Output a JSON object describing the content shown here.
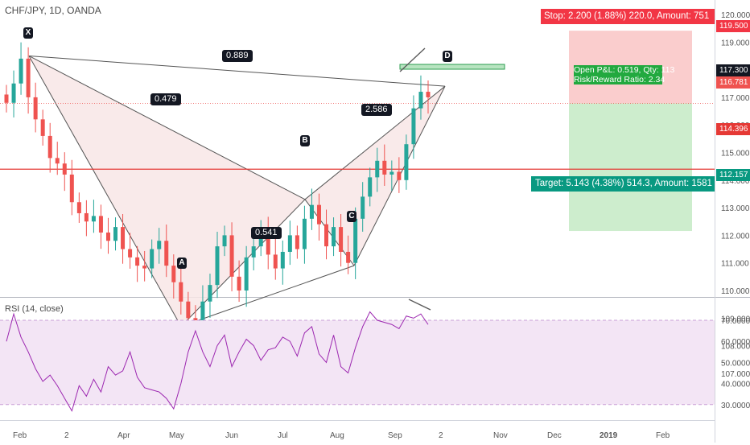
{
  "header": {
    "symbol_title": "CHF/JPY, 1D, OANDA"
  },
  "rsi": {
    "title": "RSI (14, close)",
    "upper_band": 70,
    "lower_band": 30
  },
  "position": {
    "stop_label": "Stop: 2.200 (1.88%) 220.0, Amount: 751",
    "target_label": "Target: 5.143 (4.38%) 514.3, Amount: 1581",
    "pnl_line1": "Open P&L: 0.519, Qty: 113",
    "pnl_line2": "Risk/Reward Ratio: 2.34"
  },
  "price_tags": {
    "stop": "119.500",
    "current": "117.300",
    "entry": "116.781",
    "resistance": "114.396",
    "target": "112.157"
  },
  "colors": {
    "up_candle": "#26a69a",
    "down_candle": "#ef5350",
    "pattern_fill": "#f8e6e6",
    "stop_zone": "#f9c4c4",
    "target_zone": "#c8ebc8",
    "rsi_line": "#9c27b0",
    "rsi_band": "#f3e5f5",
    "resistance_line": "#e53935"
  },
  "pattern": {
    "points": [
      {
        "name": "X",
        "label": "X"
      },
      {
        "name": "A",
        "label": "A"
      },
      {
        "name": "B",
        "label": "B"
      },
      {
        "name": "C",
        "label": "C"
      },
      {
        "name": "D",
        "label": "D"
      }
    ],
    "ratios": [
      "0.889",
      "0.479",
      "0.541",
      "2.586"
    ]
  },
  "chart_data": {
    "type": "candlestick",
    "title": "CHF/JPY, 1D, OANDA",
    "price_axis_ticks": [
      "120.000",
      "119.000",
      "118.000",
      "117.000",
      "116.000",
      "115.000",
      "114.000",
      "113.000",
      "112.000",
      "111.000",
      "110.000",
      "109.000",
      "108.000",
      "107.000"
    ],
    "rsi_axis_ticks": [
      "70.0000",
      "60.0000",
      "50.0000",
      "40.0000",
      "30.0000"
    ],
    "time_axis_labels": [
      "Feb",
      "2",
      "Apr",
      "May",
      "Jun",
      "Jul",
      "Aug",
      "Sep",
      "2",
      "Nov",
      "Dec",
      "2019",
      "Feb"
    ],
    "ylim": [
      106.4,
      120.5
    ],
    "key_levels": {
      "stop": 119.5,
      "current": 117.3,
      "entry": 116.781,
      "resistance": 114.396,
      "target": 112.157
    },
    "pattern_points": {
      "X": 118.5,
      "A": 108.7,
      "B": 113.3,
      "C": 110.9,
      "D": 117.4
    },
    "close_path": [
      116.8,
      117.5,
      118.4,
      117.0,
      116.2,
      115.6,
      114.8,
      114.6,
      114.2,
      113.2,
      112.8,
      112.5,
      112.7,
      112.1,
      111.8,
      112.3,
      111.5,
      111.2,
      110.9,
      110.8,
      111.5,
      111.8,
      110.9,
      110.3,
      109.6,
      109.0,
      108.8,
      109.6,
      110.2,
      111.6,
      112.0,
      110.5,
      110.0,
      111.2,
      111.6,
      112.2,
      111.3,
      110.8,
      111.4,
      112.0,
      111.5,
      112.6,
      113.1,
      112.4,
      111.6,
      112.3,
      111.4,
      111.0,
      112.6,
      113.4,
      114.1,
      114.7,
      114.2,
      114.3,
      114.0,
      115.3,
      116.6,
      117.2,
      117.0
    ],
    "rsi_values": [
      60,
      73,
      62,
      55,
      47,
      41,
      44,
      39,
      33,
      27,
      39,
      34,
      42,
      36,
      48,
      44,
      46,
      55,
      43,
      38,
      37,
      36,
      33,
      28,
      40,
      55,
      65,
      55,
      48,
      58,
      63,
      48,
      55,
      61,
      58,
      51,
      56,
      57,
      62,
      60,
      53,
      64,
      67,
      54,
      50,
      63,
      48,
      45,
      57,
      67,
      74,
      70,
      69,
      68,
      66,
      72,
      71,
      73,
      68
    ]
  }
}
